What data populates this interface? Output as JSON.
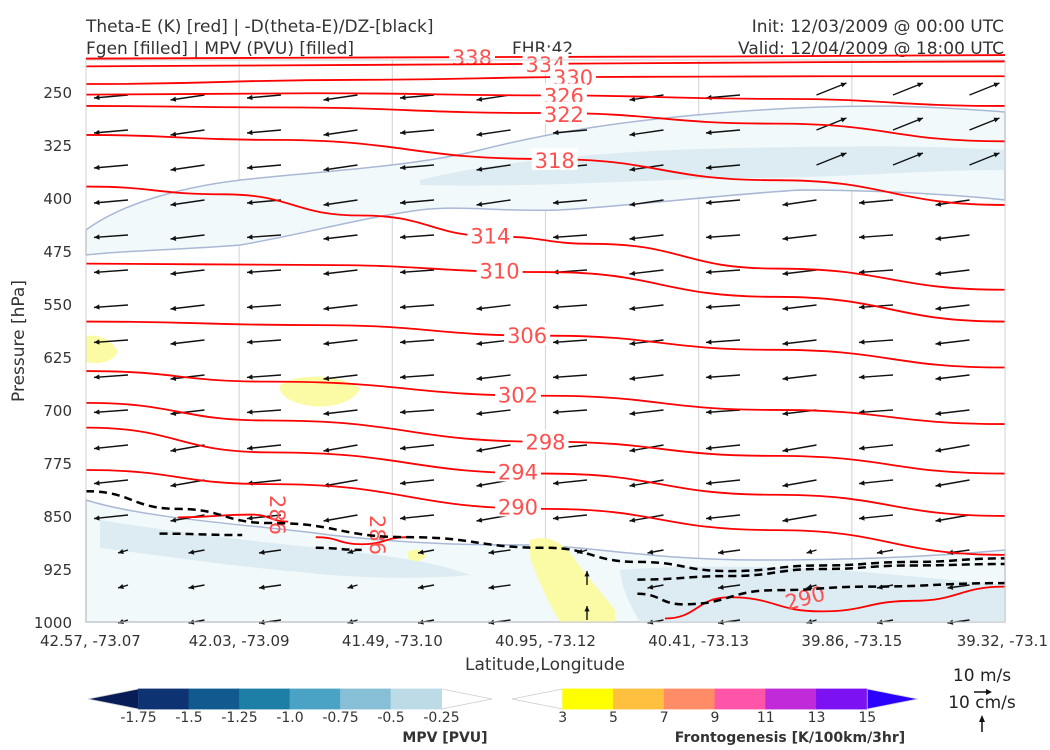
{
  "header": {
    "title_line1": "Theta-E (K) [red] | -D(theta-E)/DZ-[black]",
    "title_line2": "Fgen [filled] | MPV (PVU) [filled]",
    "fhr": "FHR:42",
    "init": "Init: 12/03/2009 @ 00:00 UTC",
    "valid": "Valid: 12/04/2009 @ 18:00 UTC"
  },
  "chart_data": {
    "type": "cross-section",
    "xlabel": "Latitude,Longitude",
    "ylabel": "Pressure [hPa]",
    "x_ticks": [
      "42.57, -73.07",
      "42.03, -73.09",
      "41.49, -73.10",
      "40.95, -73.12",
      "40.41, -73.13",
      "39.86, -73.15",
      "39.32, -73.1"
    ],
    "y_ticks": [
      "250",
      "325",
      "400",
      "475",
      "550",
      "625",
      "700",
      "775",
      "850",
      "925",
      "1000"
    ],
    "y_tick_values": [
      250,
      325,
      400,
      475,
      550,
      625,
      700,
      775,
      850,
      925,
      1000
    ],
    "ylim": [
      1000,
      205
    ],
    "theta_e_color": "#ff0000",
    "theta_e_label_color": "#ff5050",
    "theta_e_contours": [
      {
        "label": "338",
        "points": [
          [
            0,
            203
          ],
          [
            0.4,
            201
          ],
          [
            0.7,
            200
          ],
          [
            1,
            198
          ]
        ]
      },
      {
        "label": "334",
        "points": [
          [
            0,
            214
          ],
          [
            0.3,
            212
          ],
          [
            0.55,
            210
          ],
          [
            0.8,
            208
          ],
          [
            1,
            207
          ]
        ]
      },
      {
        "label": "330",
        "points": [
          [
            0,
            239
          ],
          [
            0.3,
            233
          ],
          [
            0.55,
            229
          ],
          [
            0.8,
            228
          ],
          [
            1,
            228
          ]
        ]
      },
      {
        "label": "326",
        "points": [
          [
            0,
            254
          ],
          [
            0.25,
            252
          ],
          [
            0.5,
            255
          ],
          [
            0.75,
            260
          ],
          [
            1,
            270
          ]
        ]
      },
      {
        "label": "322",
        "points": [
          [
            0,
            270
          ],
          [
            0.2,
            272
          ],
          [
            0.5,
            280
          ],
          [
            0.75,
            295
          ],
          [
            1,
            320
          ]
        ]
      },
      {
        "label": "318",
        "points": [
          [
            0,
            311
          ],
          [
            0.2,
            318
          ],
          [
            0.5,
            345
          ],
          [
            0.75,
            375
          ],
          [
            1,
            410
          ]
        ]
      },
      {
        "label": "314",
        "points": [
          [
            0,
            384
          ],
          [
            0.15,
            395
          ],
          [
            0.3,
            425
          ],
          [
            0.45,
            455
          ],
          [
            0.55,
            465
          ],
          [
            0.75,
            500
          ],
          [
            1,
            530
          ]
        ]
      },
      {
        "label": "310",
        "points": [
          [
            0,
            493
          ],
          [
            0.25,
            495
          ],
          [
            0.5,
            505
          ],
          [
            0.75,
            540
          ],
          [
            1,
            575
          ]
        ]
      },
      {
        "label": "306",
        "points": [
          [
            0,
            575
          ],
          [
            0.25,
            580
          ],
          [
            0.5,
            595
          ],
          [
            0.75,
            615
          ],
          [
            1,
            640
          ]
        ]
      },
      {
        "label": "302",
        "points": [
          [
            0,
            645
          ],
          [
            0.2,
            660
          ],
          [
            0.5,
            680
          ],
          [
            0.75,
            700
          ],
          [
            1,
            720
          ]
        ]
      },
      {
        "label": "298",
        "points": [
          [
            0,
            690
          ],
          [
            0.2,
            715
          ],
          [
            0.5,
            745
          ],
          [
            0.75,
            765
          ],
          [
            1,
            790
          ]
        ]
      },
      {
        "label": "294",
        "points": [
          [
            0,
            725
          ],
          [
            0.2,
            760
          ],
          [
            0.5,
            790
          ],
          [
            0.75,
            820
          ],
          [
            1,
            850
          ]
        ]
      },
      {
        "label": "290",
        "points": [
          [
            0,
            785
          ],
          [
            0.2,
            805
          ],
          [
            0.5,
            840
          ],
          [
            0.75,
            870
          ],
          [
            1,
            905
          ]
        ]
      }
    ],
    "low_contours": [
      {
        "label": "286",
        "points": [
          [
            0.1,
            852
          ],
          [
            0.18,
            848
          ],
          [
            0.22,
            858
          ]
        ]
      },
      {
        "label": "286",
        "points": [
          [
            0.25,
            880
          ],
          [
            0.3,
            890
          ],
          [
            0.35,
            880
          ]
        ]
      },
      {
        "label": "290",
        "points": [
          [
            0.63,
            995
          ],
          [
            0.7,
            965
          ],
          [
            0.8,
            985
          ],
          [
            0.9,
            970
          ],
          [
            1,
            950
          ]
        ]
      }
    ],
    "dthetae_dz_contours": [
      {
        "points": [
          [
            0,
            815
          ],
          [
            0.1,
            840
          ],
          [
            0.2,
            860
          ],
          [
            0.35,
            880
          ],
          [
            0.5,
            895
          ],
          [
            0.6,
            915
          ],
          [
            0.7,
            928
          ],
          [
            0.8,
            920
          ],
          [
            0.9,
            915
          ],
          [
            1,
            910
          ]
        ]
      },
      {
        "points": [
          [
            0.6,
            940
          ],
          [
            0.7,
            935
          ],
          [
            0.8,
            925
          ],
          [
            0.9,
            920
          ],
          [
            1,
            918
          ]
        ]
      },
      {
        "points": [
          [
            0.6,
            960
          ],
          [
            0.65,
            975
          ],
          [
            0.75,
            955
          ],
          [
            0.85,
            950
          ],
          [
            1,
            945
          ]
        ]
      },
      {
        "points": [
          [
            0.08,
            875
          ],
          [
            0.17,
            877
          ]
        ]
      },
      {
        "points": [
          [
            0.25,
            895
          ],
          [
            0.3,
            898
          ]
        ]
      }
    ],
    "mpv_colorbar": {
      "label": "MPV [PVU]",
      "ticks": [
        "-1.75",
        "-1.5",
        "-1.25",
        "-1.0",
        "-0.75",
        "-0.5",
        "-0.25"
      ],
      "colors": [
        "#081d58",
        "#0d3373",
        "#105a8f",
        "#1d7fa6",
        "#4aa3c4",
        "#86bfd6",
        "#bcdbe6",
        "#ffffff"
      ]
    },
    "fgen_colorbar": {
      "label": "Frontogenesis [K/100km/3hr]",
      "ticks": [
        "3",
        "5",
        "7",
        "9",
        "11",
        "13",
        "15"
      ],
      "colors": [
        "#ffffff",
        "#ffff00",
        "#ffbf3f",
        "#ff8c66",
        "#ff55a8",
        "#c02ad8",
        "#7c12f2",
        "#2b00ff"
      ]
    },
    "vector_key": {
      "horizontal": "10 m/s",
      "vertical": "10 cm/s"
    }
  }
}
